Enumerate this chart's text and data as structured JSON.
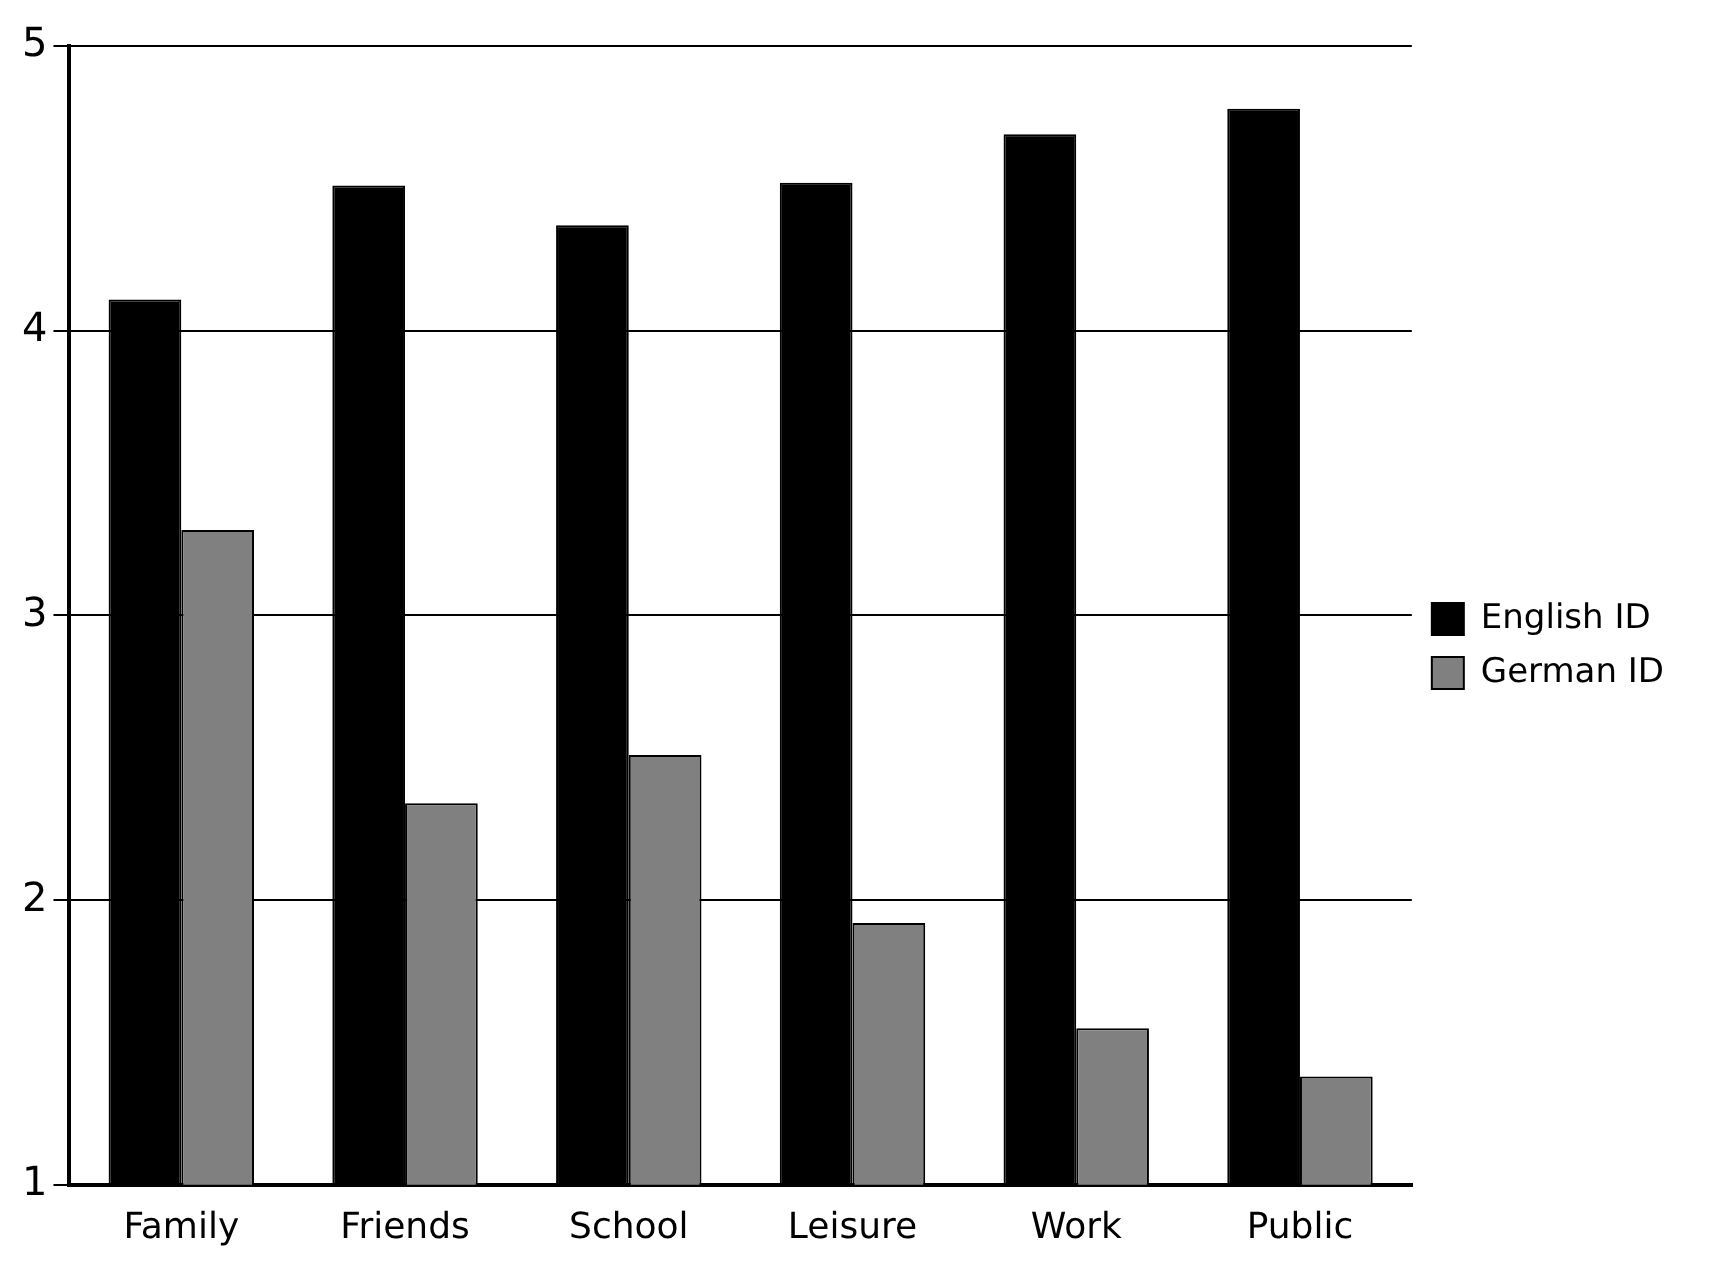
{
  "chart_data": {
    "type": "bar",
    "categories": [
      "Family",
      "Friends",
      "School",
      "Leisure",
      "Work",
      "Public"
    ],
    "series": [
      {
        "name": "English ID",
        "color": "#000000",
        "values": [
          4.11,
          4.51,
          4.37,
          4.52,
          4.69,
          4.78
        ]
      },
      {
        "name": "German ID",
        "color": "#808080",
        "values": [
          3.3,
          2.34,
          2.51,
          1.92,
          1.55,
          1.38
        ]
      }
    ],
    "ylim": [
      1,
      5
    ],
    "yticks": [
      1,
      2,
      3,
      4,
      5
    ],
    "grid": "y",
    "legend": "right"
  }
}
